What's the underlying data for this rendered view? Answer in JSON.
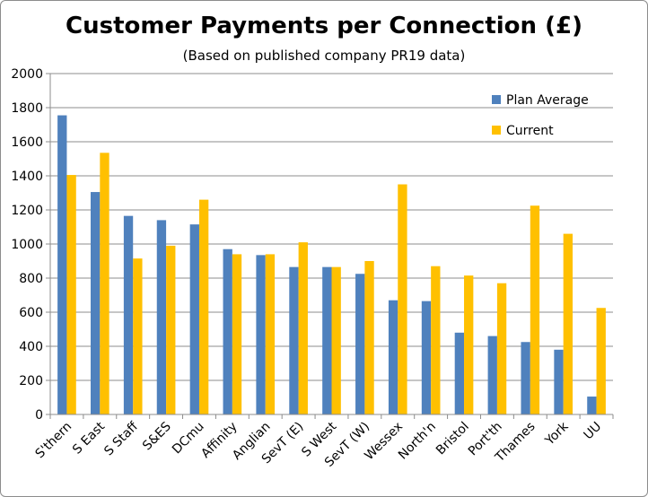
{
  "chart_data": {
    "type": "bar",
    "title": "Customer Payments per Connection (£)",
    "subtitle": "(Based on published company PR19 data)",
    "xlabel": "",
    "ylabel": "",
    "ylim": [
      0,
      2000
    ],
    "yticks": [
      0,
      200,
      400,
      600,
      800,
      1000,
      1200,
      1400,
      1600,
      1800,
      2000
    ],
    "grid": true,
    "legend_position": "top-right",
    "categories": [
      "S'thern",
      "S East",
      "S Staff",
      "S&ES",
      "DCmu",
      "Affinity",
      "Anglian",
      "SevT (E)",
      "S West",
      "SevT (W)",
      "Wessex",
      "North'n",
      "Bristol",
      "Port'th",
      "Thames",
      "York",
      "UU"
    ],
    "series": [
      {
        "name": "Plan Average",
        "color": "#4f81bd",
        "values": [
          1755,
          1305,
          1165,
          1140,
          1115,
          970,
          935,
          865,
          865,
          825,
          670,
          665,
          480,
          460,
          425,
          380,
          105
        ]
      },
      {
        "name": "Current",
        "color": "#ffc000",
        "values": [
          1405,
          1535,
          915,
          990,
          1260,
          940,
          940,
          1010,
          865,
          900,
          1350,
          870,
          815,
          770,
          1225,
          1060,
          625
        ]
      }
    ]
  }
}
